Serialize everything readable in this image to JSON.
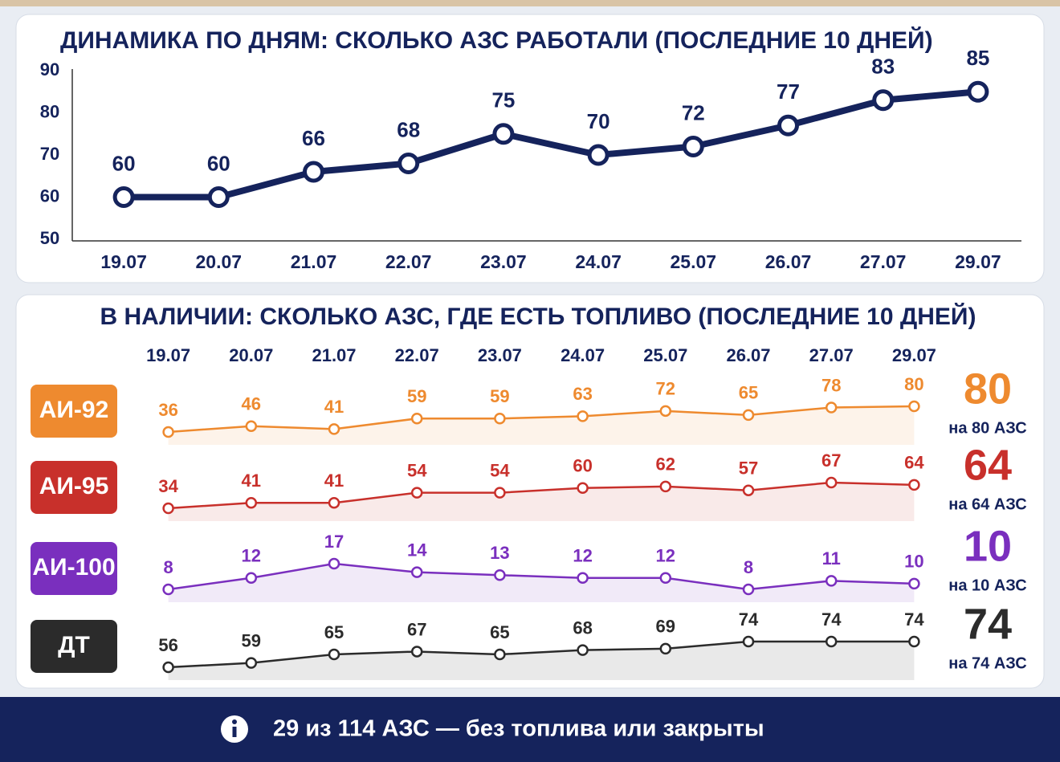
{
  "chart_data": [
    {
      "type": "line",
      "title": "ДИНАМИКА ПО ДНЯМ: СКОЛЬКО АЗС РАБОТАЛИ (ПОСЛЕДНИЕ 10 ДНЕЙ)",
      "categories": [
        "19.07",
        "20.07",
        "21.07",
        "22.07",
        "23.07",
        "24.07",
        "25.07",
        "26.07",
        "27.07",
        "29.07"
      ],
      "values": [
        60,
        60,
        66,
        68,
        75,
        70,
        72,
        77,
        83,
        85
      ],
      "color": "#15235c",
      "ylim": [
        50,
        90
      ],
      "yticks": [
        50,
        60,
        70,
        80,
        90
      ]
    },
    {
      "type": "row-lines",
      "title": "В НАЛИЧИИ: СКОЛЬКО АЗС, ГДЕ ЕСТЬ ТОПЛИВО (ПОСЛЕДНИЕ 10 ДНЕЙ)",
      "categories": [
        "19.07",
        "20.07",
        "21.07",
        "22.07",
        "23.07",
        "24.07",
        "25.07",
        "26.07",
        "27.07",
        "29.07"
      ],
      "series": [
        {
          "name": "АИ-92",
          "color": "#ee8a2f",
          "values": [
            36,
            46,
            41,
            59,
            59,
            63,
            72,
            65,
            78,
            80
          ],
          "summary_value": 80,
          "summary_label": "на 80 АЗС"
        },
        {
          "name": "АИ-95",
          "color": "#c8302b",
          "values": [
            34,
            41,
            41,
            54,
            54,
            60,
            62,
            57,
            67,
            64
          ],
          "summary_value": 64,
          "summary_label": "на 64 АЗС"
        },
        {
          "name": "АИ-100",
          "color": "#7a2fbe",
          "values": [
            8,
            12,
            17,
            14,
            13,
            12,
            12,
            8,
            11,
            10
          ],
          "summary_value": 10,
          "summary_label": "на 10 АЗС"
        },
        {
          "name": "ДТ",
          "color": "#2b2b2b",
          "values": [
            56,
            59,
            65,
            67,
            65,
            68,
            69,
            74,
            74,
            74
          ],
          "summary_value": 74,
          "summary_label": "на 74 АЗС"
        }
      ]
    }
  ],
  "footer": {
    "text": "29 из 114 АЗС — без топлива или закрыты"
  }
}
